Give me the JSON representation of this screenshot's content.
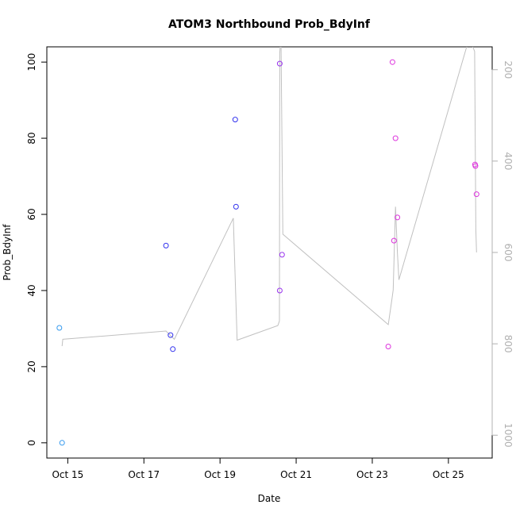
{
  "chart_data": {
    "type": "scatter",
    "title": "ATOM3 Northbound Prob_BdyInf",
    "xlabel": "Date",
    "ylabel": "Prob_BdyInf",
    "x_ticks": [
      "Oct 15",
      "Oct 17",
      "Oct 19",
      "Oct 21",
      "Oct 23",
      "Oct 25"
    ],
    "y_ticks": [
      "0",
      "20",
      "40",
      "60",
      "80",
      "100"
    ],
    "y2_ticks": [
      "200",
      "400",
      "600",
      "800",
      "1000"
    ],
    "xlim_day": [
      14.45,
      26.15
    ],
    "ylim": [
      -4,
      104
    ],
    "y2lim": [
      1050,
      150
    ],
    "grid": false,
    "legend": "none",
    "points": [
      {
        "day": 14.78,
        "value": 30.2,
        "color": "#3399ee"
      },
      {
        "day": 14.85,
        "value": 0.0,
        "color": "#3399ee"
      },
      {
        "day": 17.58,
        "value": 51.8,
        "color": "#3333ee"
      },
      {
        "day": 17.7,
        "value": 28.3,
        "color": "#3333ee"
      },
      {
        "day": 17.76,
        "value": 24.6,
        "color": "#3333ee"
      },
      {
        "day": 19.4,
        "value": 84.9,
        "color": "#3333ee"
      },
      {
        "day": 19.42,
        "value": 62.0,
        "color": "#3333ee"
      },
      {
        "day": 20.57,
        "value": 40.0,
        "color": "#9933ee"
      },
      {
        "day": 20.57,
        "value": 99.6,
        "color": "#9933ee"
      },
      {
        "day": 20.63,
        "value": 49.4,
        "color": "#9933ee"
      },
      {
        "day": 23.42,
        "value": 25.3,
        "color": "#dd33dd"
      },
      {
        "day": 23.53,
        "value": 100.0,
        "color": "#dd33dd"
      },
      {
        "day": 23.57,
        "value": 53.1,
        "color": "#dd33dd"
      },
      {
        "day": 23.61,
        "value": 80.0,
        "color": "#dd33dd"
      },
      {
        "day": 23.66,
        "value": 59.2,
        "color": "#dd33dd"
      },
      {
        "day": 25.7,
        "value": 73.1,
        "color": "#dd33dd"
      },
      {
        "day": 25.71,
        "value": 72.7,
        "color": "#dd33dd"
      },
      {
        "day": 25.74,
        "value": 65.3,
        "color": "#dd33dd"
      }
    ],
    "line_series": {
      "axis": "right",
      "color": "#c0c0c0",
      "days": [
        14.85,
        14.87,
        17.58,
        17.8,
        19.35,
        19.45,
        20.52,
        20.56,
        20.57,
        20.6,
        20.65,
        23.42,
        23.52,
        23.55,
        23.61,
        23.66,
        23.7,
        25.55,
        25.69,
        25.72,
        25.74
      ],
      "values": [
        805,
        790,
        772,
        790,
        525,
        792,
        760,
        750,
        165,
        120,
        560,
        758,
        700,
        682,
        500,
        600,
        660,
        130,
        160,
        550,
        600
      ]
    }
  }
}
